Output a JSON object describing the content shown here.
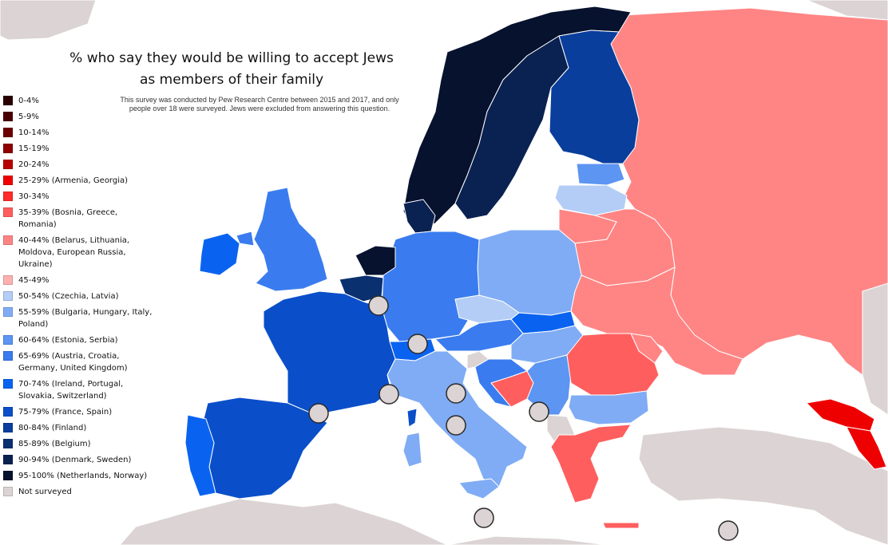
{
  "title": {
    "line1": "% who say they would be willing to accept Jews",
    "line2": "as members of their family"
  },
  "subtitle": "This survey was conducted by Pew Research Centre between 2015 and 2017, and only people over 18 were surveyed. Jews were excluded from answering this question.",
  "legend": [
    {
      "label": "0-4%",
      "color": "#2b0000"
    },
    {
      "label": "5-9%",
      "color": "#4a0000"
    },
    {
      "label": "10-14%",
      "color": "#6b0000"
    },
    {
      "label": "15-19%",
      "color": "#8f0000"
    },
    {
      "label": "20-24%",
      "color": "#b80000"
    },
    {
      "label": "25-29% (Armenia, Georgia)",
      "color": "#ee0000"
    },
    {
      "label": "30-34%",
      "color": "#ff2a2a"
    },
    {
      "label": "35-39% (Bosnia, Greece, Romania)",
      "color": "#ff5e5e"
    },
    {
      "label": "40-44% (Belarus, Lithuania, Moldova, European Russia, Ukraine)",
      "color": "#ff8585"
    },
    {
      "label": "45-49%",
      "color": "#ffb0b0"
    },
    {
      "label": "50-54% (Czechia, Latvia)",
      "color": "#b3cdf7"
    },
    {
      "label": "55-59% (Bulgaria, Hungary, Italy, Poland)",
      "color": "#80acf5"
    },
    {
      "label": "60-64% (Estonia, Serbia)",
      "color": "#5c95f2"
    },
    {
      "label": "65-69% (Austria, Croatia, Germany, United Kingdom)",
      "color": "#3a7cef"
    },
    {
      "label": "70-74% (Ireland, Portugal, Slovakia, Switzerland)",
      "color": "#0a63f0"
    },
    {
      "label": "75-79% (France, Spain)",
      "color": "#0a4fc9"
    },
    {
      "label": "80-84% (Finland)",
      "color": "#0a3e9c"
    },
    {
      "label": "85-89% (Belgium)",
      "color": "#0a3070"
    },
    {
      "label": "90-94% (Denmark, Sweden)",
      "color": "#0a2251"
    },
    {
      "label": "95-100% (Netherlands, Norway)",
      "color": "#06122e"
    },
    {
      "label": "Not surveyed",
      "color": "#dcd4d4"
    }
  ],
  "regions": {
    "Norway": 97,
    "Netherlands": 97,
    "Sweden": 92,
    "Denmark": 92,
    "Belgium": 87,
    "Finland": 82,
    "France": 77,
    "Spain": 77,
    "Ireland": 72,
    "Portugal": 72,
    "Slovakia": 72,
    "Switzerland": 72,
    "Austria": 67,
    "Croatia": 67,
    "Germany": 67,
    "United Kingdom": 67,
    "Estonia": 62,
    "Serbia": 62,
    "Bulgaria": 57,
    "Hungary": 57,
    "Italy": 57,
    "Poland": 57,
    "Czechia": 52,
    "Latvia": 52,
    "Belarus": 42,
    "Lithuania": 42,
    "Moldova": 42,
    "European Russia": 42,
    "Ukraine": 42,
    "Bosnia": 37,
    "Greece": 37,
    "Romania": 37,
    "Armenia": 27,
    "Georgia": 27
  },
  "not_surveyed_color": "#dcd4d4"
}
